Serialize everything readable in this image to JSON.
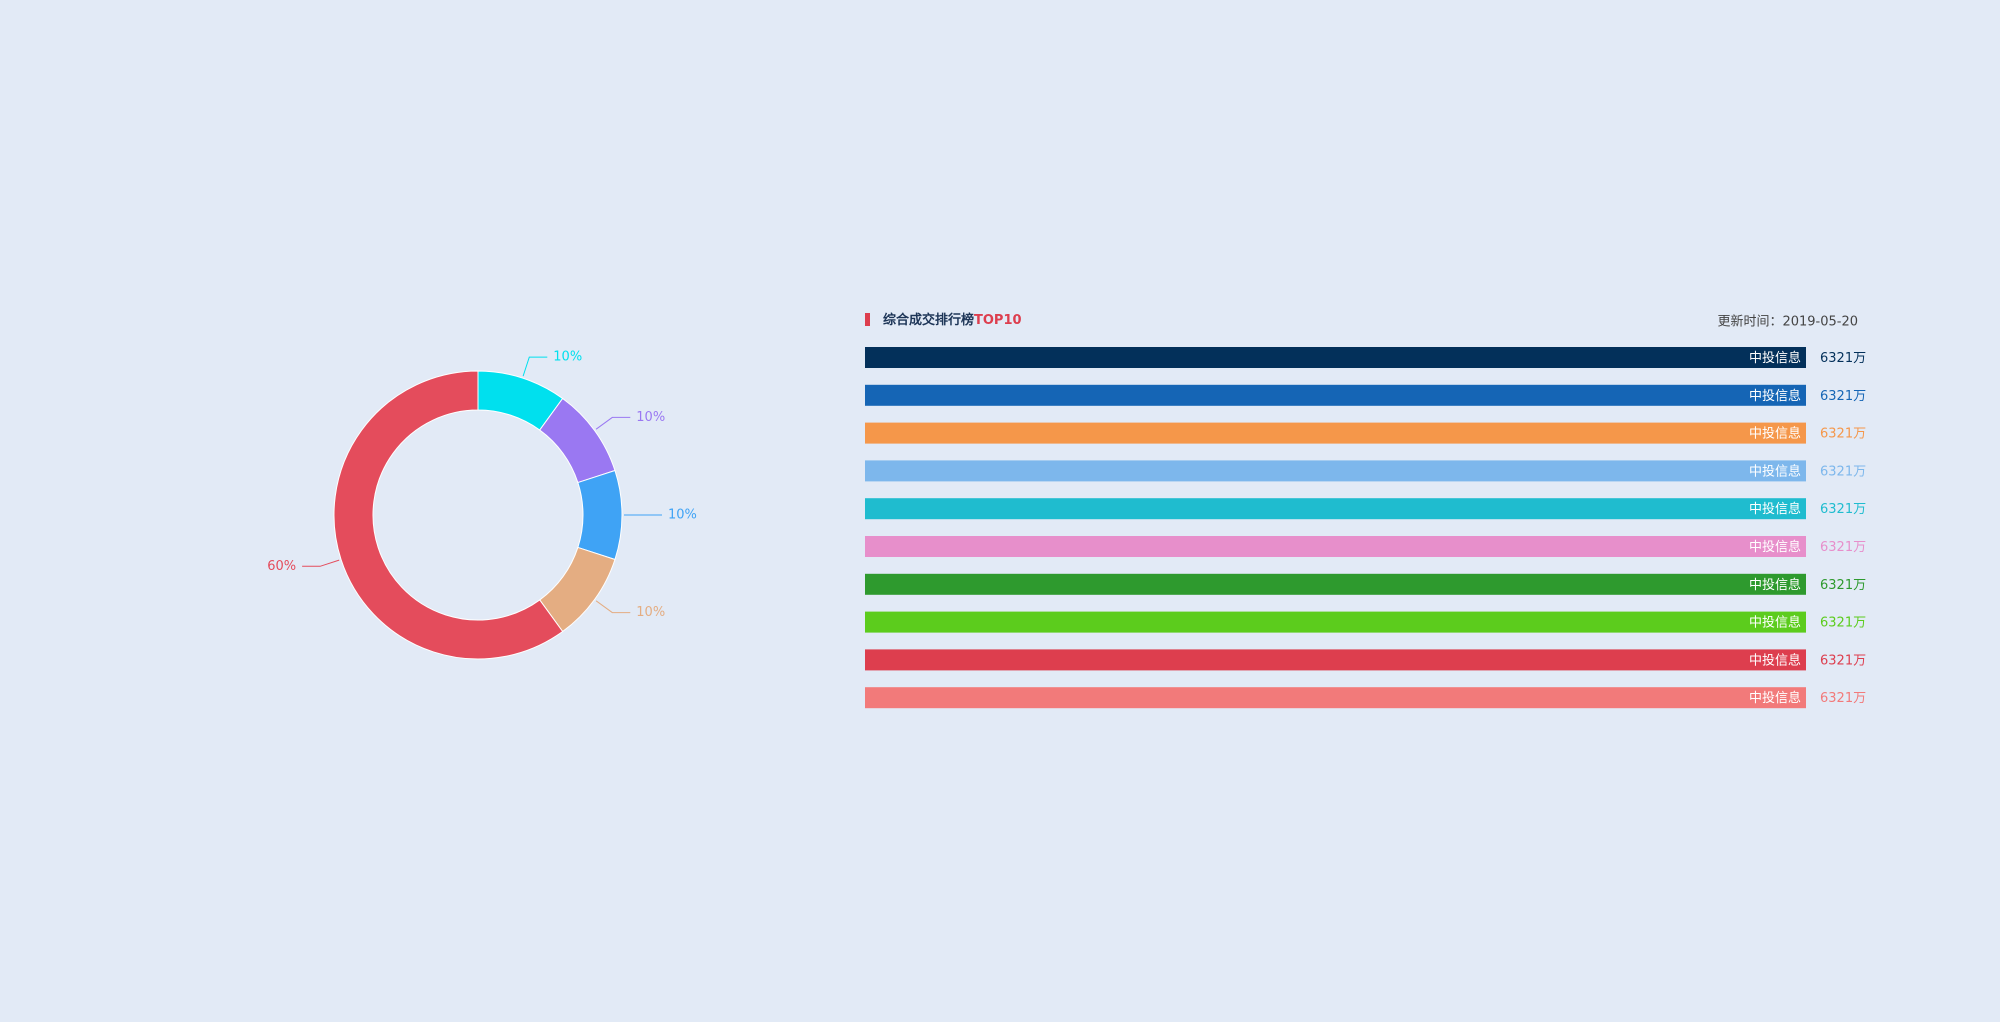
{
  "chart_data": [
    {
      "type": "pie",
      "values": [
        10,
        10,
        10,
        10,
        60
      ],
      "value_labels": [
        "10%",
        "10%",
        "10%",
        "10%",
        "60%"
      ],
      "colors": [
        "#00e0ee",
        "#9a78f2",
        "#3fa3f5",
        "#e4ad82",
        "#e44c5c"
      ]
    },
    {
      "type": "bar",
      "title": "综合成交排行榜",
      "title_highlight": "TOP10",
      "subtitle": "更新时间：2019-05-20",
      "categories": [
        "中投信息",
        "中投信息",
        "中投信息",
        "中投信息",
        "中投信息",
        "中投信息",
        "中投信息",
        "中投信息",
        "中投信息",
        "中投信息"
      ],
      "values": [
        6321,
        6321,
        6321,
        6321,
        6321,
        6321,
        6321,
        6321,
        6321,
        6321
      ],
      "value_labels": [
        "6321万",
        "6321万",
        "6321万",
        "6321万",
        "6321万",
        "6321万",
        "6321万",
        "6321万",
        "6321万",
        "6321万"
      ],
      "colors": [
        "#03305a",
        "#1565b5",
        "#f5974a",
        "#7db7ec",
        "#1fbccf",
        "#e78fcb",
        "#2e9a2e",
        "#5ccc1d",
        "#dd3e4e",
        "#f27a7a"
      ]
    }
  ]
}
